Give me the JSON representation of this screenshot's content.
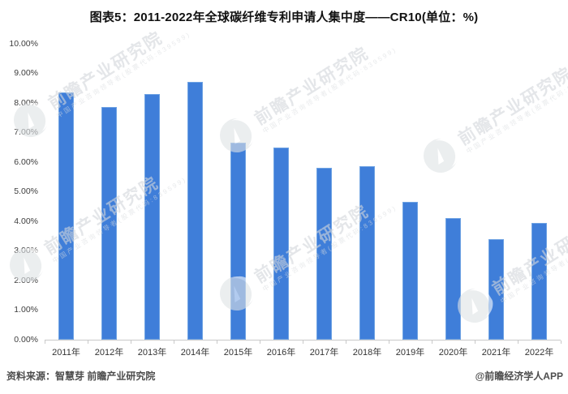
{
  "header": {
    "title": "图表5：2011-2022年全球碳纤维专利申请人集中度——CR10(单位：%)"
  },
  "chart_data": {
    "type": "bar",
    "title": "图表5：2011-2022年全球碳纤维专利申请人集中度——CR10(单位：%)",
    "categories": [
      "2011年",
      "2012年",
      "2013年",
      "2014年",
      "2015年",
      "2016年",
      "2017年",
      "2018年",
      "2019年",
      "2020年",
      "2021年",
      "2022年"
    ],
    "values": [
      8.35,
      7.85,
      8.3,
      8.7,
      6.65,
      6.5,
      5.8,
      5.85,
      4.65,
      4.1,
      3.4,
      3.95
    ],
    "unit": "%",
    "xlabel": "",
    "ylabel": "",
    "ylim": [
      0,
      10
    ],
    "y_tick_step": 1,
    "y_tick_labels_top_to_bottom": [
      "10.00%",
      "9.00%",
      "8.00%",
      "7.00%",
      "6.00%",
      "5.00%",
      "4.00%",
      "3.00%",
      "2.00%",
      "1.00%",
      "0.00%"
    ],
    "grid": false,
    "legend_position": "none",
    "bar_color": "#3F7ED9",
    "bar_edge_color": "#6FA3E3",
    "axis_color": "#c9c9c9"
  },
  "watermark": {
    "brand": "前瞻产业研究院",
    "tagline": "中国产业咨询领导者(股票代码:839599)"
  },
  "footer": {
    "source": "资料来源：智慧芽 前瞻产业研究院",
    "credit": "@前瞻经济学人APP"
  }
}
